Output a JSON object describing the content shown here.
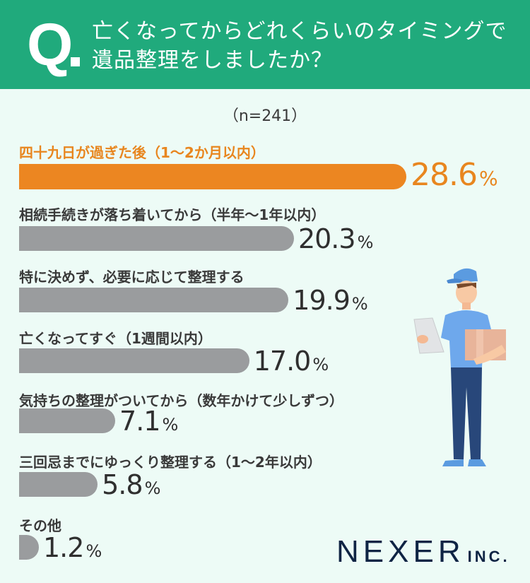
{
  "header": {
    "q_mark": "Q",
    "question_line1": "亡くなってからどれくらいのタイミングで",
    "question_line2": "遺品整理をしましたか？"
  },
  "sample": "（n=241）",
  "colors": {
    "header_bg": "#20aa7c",
    "page_bg": "#edfbf6",
    "highlight": "#ec8621",
    "bar": "#9a9c9e",
    "logo": "#0f2444"
  },
  "chart_data": {
    "type": "bar",
    "orientation": "horizontal",
    "title": "亡くなってからどれくらいのタイミングで遺品整理をしましたか？",
    "subtitle": "（n=241）",
    "unit": "%",
    "categories": [
      "四十九日が過ぎた後（1〜2か月以内）",
      "相続手続きが落ち着いてから（半年〜1年以内）",
      "特に決めず、必要に応じて整理する",
      "亡くなってすぐ（1週間以内）",
      "気持ちの整理がついてから（数年かけて少しずつ）",
      "三回忌までにゆっくり整理する（1〜2年以内）",
      "その他"
    ],
    "values": [
      28.6,
      20.3,
      19.9,
      17.0,
      7.1,
      5.8,
      1.2
    ],
    "value_labels": [
      "28.6",
      "20.3",
      "19.9",
      "17.0",
      "7.1",
      "5.8",
      "1.2"
    ],
    "highlight_index": 0
  },
  "logo": {
    "main": "NEXER",
    "suffix": "INC."
  }
}
